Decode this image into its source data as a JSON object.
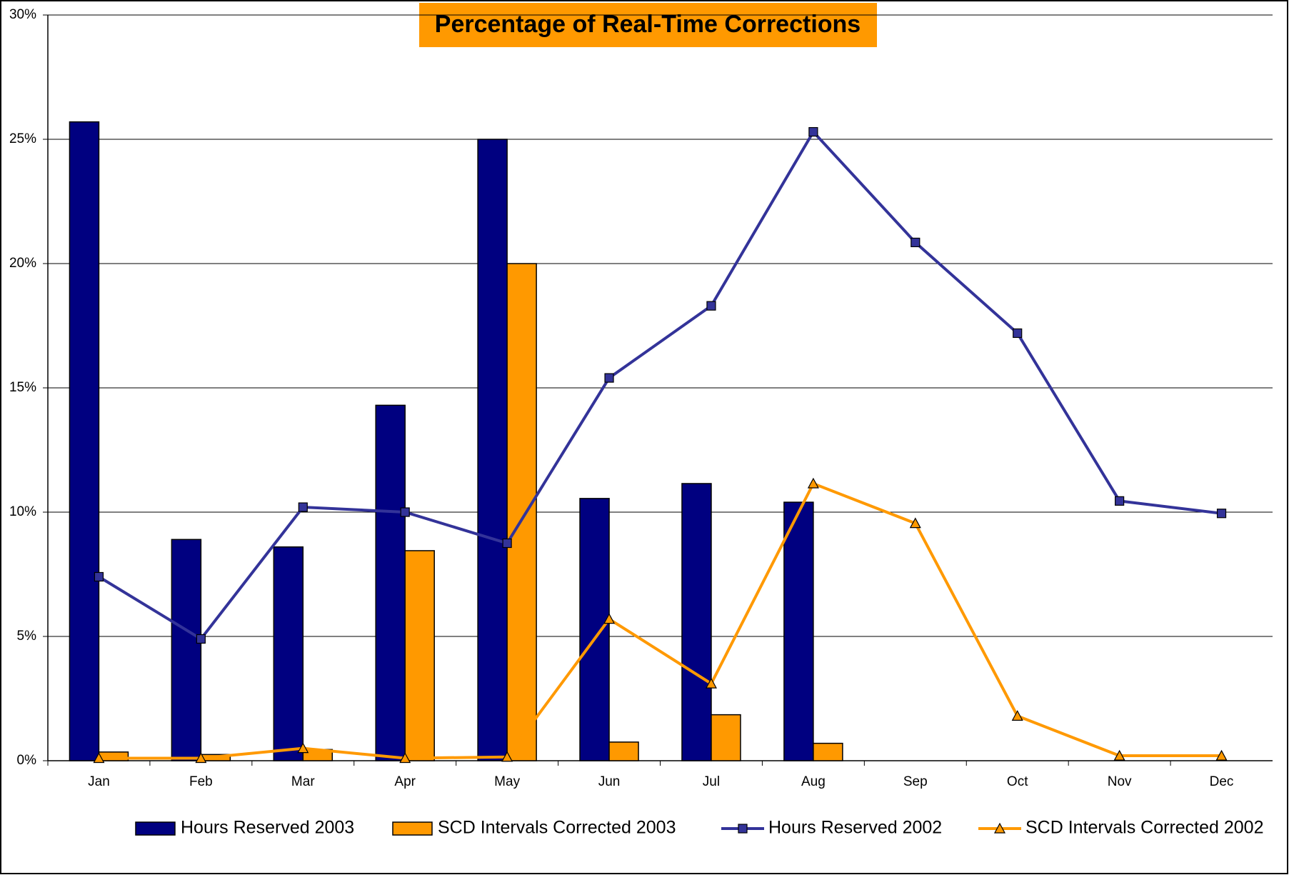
{
  "chart_data": {
    "type": "combo",
    "title": "Percentage of Real-Time Corrections",
    "categories": [
      "Jan",
      "Feb",
      "Mar",
      "Apr",
      "May",
      "Jun",
      "Jul",
      "Aug",
      "Sep",
      "Oct",
      "Nov",
      "Dec"
    ],
    "series": [
      {
        "name": "Hours Reserved 2003",
        "type": "bar",
        "color": "#000080",
        "values": [
          25.7,
          8.9,
          8.6,
          14.3,
          25.0,
          10.55,
          11.15,
          10.4,
          null,
          null,
          null,
          null
        ]
      },
      {
        "name": "SCD Intervals Corrected 2003",
        "type": "bar",
        "color": "#FF9900",
        "values": [
          0.35,
          0.25,
          0.45,
          8.45,
          20.0,
          0.75,
          1.85,
          0.7,
          null,
          null,
          null,
          null
        ]
      },
      {
        "name": "Hours Reserved 2002",
        "type": "line",
        "marker": "square",
        "color": "#333399",
        "values": [
          7.4,
          4.9,
          10.2,
          10.0,
          8.75,
          15.4,
          18.3,
          25.3,
          20.85,
          17.2,
          10.45,
          9.95
        ]
      },
      {
        "name": "SCD Intervals Corrected 2002",
        "type": "line",
        "marker": "triangle",
        "color": "#FF9900",
        "values": [
          0.1,
          0.1,
          0.5,
          0.1,
          0.15,
          5.7,
          3.1,
          11.15,
          9.55,
          1.8,
          0.2,
          0.2
        ]
      }
    ],
    "ylim": [
      0,
      30
    ],
    "yticks": [
      {
        "value": 0,
        "label": "0%"
      },
      {
        "value": 5,
        "label": "5%"
      },
      {
        "value": 10,
        "label": "10%"
      },
      {
        "value": 15,
        "label": "15%"
      },
      {
        "value": 20,
        "label": "20%"
      },
      {
        "value": 25,
        "label": "25%"
      },
      {
        "value": 30,
        "label": "30%"
      }
    ],
    "grid": true,
    "legend": "bottom"
  }
}
